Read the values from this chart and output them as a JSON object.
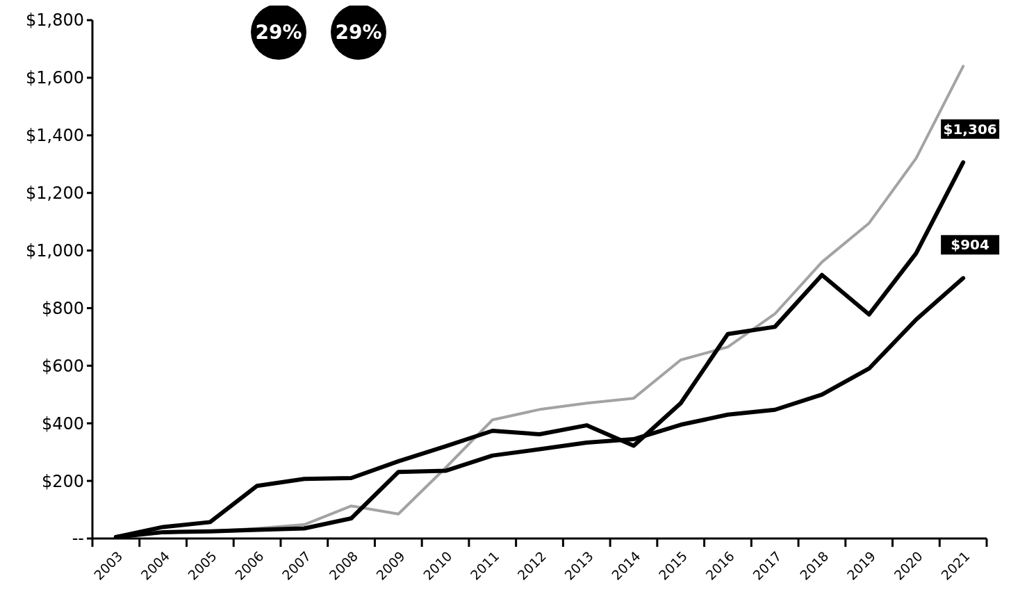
{
  "chart_data": {
    "type": "line",
    "categories": [
      "2003",
      "2004",
      "2005",
      "2006",
      "2007",
      "2008",
      "2009",
      "2010",
      "2011",
      "2012",
      "2013",
      "2014",
      "2015",
      "2016",
      "2017",
      "2018",
      "2019",
      "2020",
      "2021"
    ],
    "series": [
      {
        "color": "#a3a3a3",
        "values": [
          5,
          20,
          25,
          35,
          48,
          113,
          85,
          245,
          412,
          448,
          470,
          487,
          620,
          665,
          780,
          960,
          1095,
          1320,
          1640
        ]
      },
      {
        "color": "#000000",
        "values": [
          5,
          40,
          57,
          183,
          207,
          210,
          268,
          320,
          374,
          362,
          393,
          322,
          470,
          710,
          735,
          915,
          778,
          990,
          1306
        ],
        "value_labels": [
          null,
          null,
          null,
          null,
          null,
          null,
          null,
          null,
          null,
          null,
          null,
          null,
          null,
          null,
          null,
          null,
          null,
          null,
          "$1,306"
        ]
      },
      {
        "color": "#000000",
        "values": [
          5,
          22,
          25,
          30,
          35,
          70,
          231,
          235,
          288,
          310,
          333,
          345,
          395,
          430,
          447,
          500,
          590,
          760,
          904
        ],
        "value_labels": [
          null,
          null,
          null,
          null,
          null,
          null,
          null,
          null,
          null,
          null,
          null,
          null,
          null,
          null,
          null,
          null,
          null,
          null,
          "$904"
        ]
      }
    ],
    "ylim": [
      0,
      1800
    ],
    "yticks": [
      {
        "value": 0,
        "label": "--"
      },
      {
        "value": 200,
        "label": "$200"
      },
      {
        "value": 400,
        "label": "$400"
      },
      {
        "value": 600,
        "label": "$600"
      },
      {
        "value": 800,
        "label": "$800"
      },
      {
        "value": 1000,
        "label": "$1,000"
      },
      {
        "value": 1200,
        "label": "$1,200"
      },
      {
        "value": 1400,
        "label": "$1,400"
      },
      {
        "value": 1600,
        "label": "$1,600"
      },
      {
        "value": 1800,
        "label": "$1,800"
      }
    ],
    "annotations": [
      "29%",
      "29%"
    ],
    "grid": false
  }
}
